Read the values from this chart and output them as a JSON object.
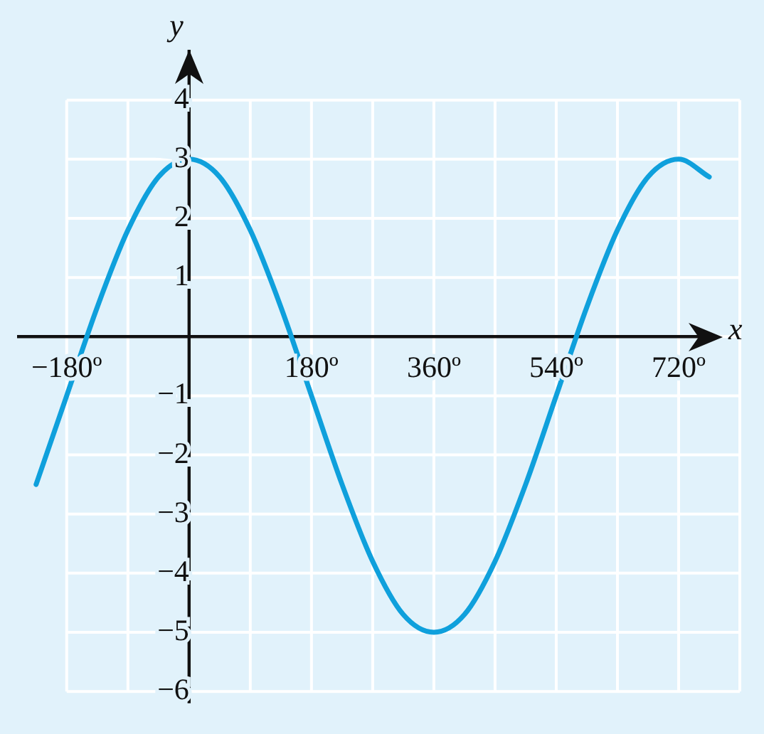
{
  "chart_data": {
    "type": "line",
    "xlabel": "x",
    "ylabel": "y",
    "x": [
      -225,
      -180,
      -135,
      -90,
      -45,
      0,
      45,
      90,
      135,
      180,
      225,
      270,
      315,
      360,
      405,
      450,
      495,
      540,
      585,
      630,
      675,
      720,
      765
    ],
    "series": [
      {
        "color": "#0fa0dc",
        "values": [
          -2.5,
          -1,
          0.5,
          1.8,
          2.7,
          3,
          2.7,
          1.8,
          0.5,
          -1,
          -2.5,
          -3.8,
          -4.7,
          -5,
          -4.7,
          -3.8,
          -2.5,
          -1,
          0.5,
          1.8,
          2.7,
          3,
          2.7
        ]
      }
    ],
    "xlim": [
      -253,
      810
    ],
    "ylim": [
      -6.2,
      4.85
    ],
    "xticks": [
      {
        "value": -180,
        "label": "−180º"
      },
      {
        "value": -90,
        "label": null
      },
      {
        "value": 0,
        "label": null
      },
      {
        "value": 90,
        "label": null
      },
      {
        "value": 180,
        "label": "180º"
      },
      {
        "value": 270,
        "label": null
      },
      {
        "value": 360,
        "label": "360º"
      },
      {
        "value": 450,
        "label": null
      },
      {
        "value": 540,
        "label": "540º"
      },
      {
        "value": 630,
        "label": null
      },
      {
        "value": 720,
        "label": "720º"
      },
      {
        "value": 810,
        "label": null
      }
    ],
    "yticks": [
      {
        "value": -6,
        "label": "−6"
      },
      {
        "value": -5,
        "label": "−5"
      },
      {
        "value": -4,
        "label": "−4"
      },
      {
        "value": -3,
        "label": "−3"
      },
      {
        "value": -2,
        "label": "−2"
      },
      {
        "value": -1,
        "label": "−1"
      },
      {
        "value": 0,
        "label": null
      },
      1,
      2,
      3,
      4
    ],
    "grid": true,
    "legend": false,
    "marker": "none",
    "line_style": "solid"
  }
}
